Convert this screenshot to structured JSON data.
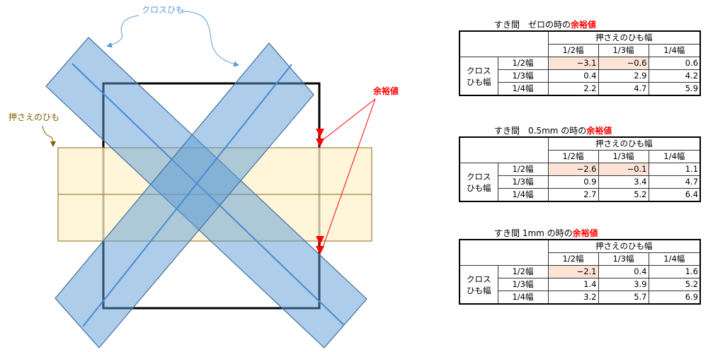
{
  "labels": {
    "cross_string": "クロスひも",
    "holding_string": "押さえのひも",
    "margin": "余裕値"
  },
  "colors": {
    "cross_string": "#5b9bd5",
    "holding_string": "#fff2cc",
    "margin": "#ff0000",
    "negative_cell": "#fbe3d6"
  },
  "tables": [
    {
      "title_prefix": "すき間　ゼロの時の",
      "title_highlight": "余裕値",
      "col_group": "押さえのひも幅",
      "row_group": "クロス\nひも幅",
      "columns": [
        "1/2幅",
        "1/3幅",
        "1/4幅"
      ],
      "rows": [
        {
          "label": "1/2幅",
          "values": [
            "−3.1",
            "−0.6",
            "0.6"
          ]
        },
        {
          "label": "1/3幅",
          "values": [
            "0.4",
            "2.9",
            "4.2"
          ]
        },
        {
          "label": "1/4幅",
          "values": [
            "2.2",
            "4.7",
            "5.9"
          ]
        }
      ]
    },
    {
      "title_prefix": "すき間　0.5mm の時の",
      "title_highlight": "余裕値",
      "col_group": "押さえのひも幅",
      "row_group": "クロス\nひも幅",
      "columns": [
        "1/2幅",
        "1/3幅",
        "1/4幅"
      ],
      "rows": [
        {
          "label": "1/2幅",
          "values": [
            "−2.6",
            "−0.1",
            "1.1"
          ]
        },
        {
          "label": "1/3幅",
          "values": [
            "0.9",
            "3.4",
            "4.7"
          ]
        },
        {
          "label": "1/4幅",
          "values": [
            "2.7",
            "5.2",
            "6.4"
          ]
        }
      ]
    },
    {
      "title_prefix": "すき間 1mm の時の",
      "title_highlight": "余裕値",
      "col_group": "押さえのひも幅",
      "row_group": "クロス\nひも幅",
      "columns": [
        "1/2幅",
        "1/3幅",
        "1/4幅"
      ],
      "rows": [
        {
          "label": "1/2幅",
          "values": [
            "−2.1",
            "0.4",
            "1.6"
          ]
        },
        {
          "label": "1/3幅",
          "values": [
            "1.4",
            "3.9",
            "5.2"
          ]
        },
        {
          "label": "1/4幅",
          "values": [
            "3.2",
            "5.7",
            "6.9"
          ]
        }
      ]
    }
  ]
}
